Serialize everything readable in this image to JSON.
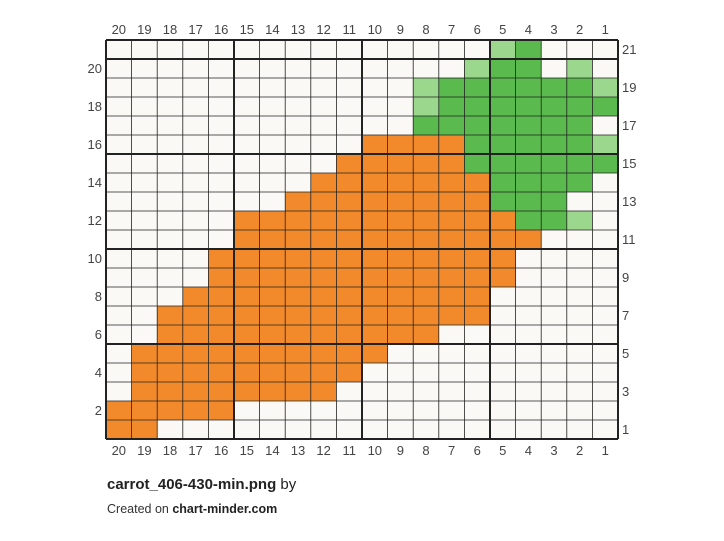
{
  "footer": {
    "filename": "carrot_406-430-min.png",
    "by_word": "by",
    "created_on": "Created on",
    "site": "chart-minder.com"
  },
  "chart_data": {
    "type": "grid",
    "columns": 20,
    "rows": 21,
    "column_labels": [
      "20",
      "19",
      "18",
      "17",
      "16",
      "15",
      "14",
      "13",
      "12",
      "11",
      "10",
      "9",
      "8",
      "7",
      "6",
      "5",
      "4",
      "3",
      "2",
      "1"
    ],
    "left_row_labels": [
      "20",
      "18",
      "16",
      "14",
      "12",
      "10",
      "8",
      "6",
      "4",
      "2"
    ],
    "right_row_labels": [
      "21",
      "19",
      "17",
      "15",
      "13",
      "11",
      "9",
      "7",
      "5",
      "3",
      "1"
    ],
    "colors": {
      "background": "#faf9f5",
      "orange": "#f28a2b",
      "green": "#5aba4e",
      "light_green": "#9bd88e",
      "grid": "#222222"
    },
    "legend": {
      ".": "background",
      "O": "orange",
      "G": "green",
      "L": "light_green"
    },
    "cells": [
      "...............LG...",
      "..............LGG.L.",
      "............LGGGGGGL",
      "............LGGGGGGG",
      "............GGGGGGG.",
      "..........OOOOGGGGGL",
      ".........OOOOOGGGGGG",
      "........OOOOOOOGGGG.",
      ".......OOOOOOOOGGG..",
      ".....OOOOOOOOOOOGGL.",
      ".....OOOOOOOOOOOO...",
      "....OOOOOOOOOOOO....",
      "....OOOOOOOOOOOO....",
      "...OOOOOOOOOOOO.....",
      "..OOOOOOOOOOOOO.....",
      "..OOOOOOOOOOO.......",
      ".OOOOOOOOOO.........",
      ".OOOOOOOOO..........",
      ".OOOOOOOO...........",
      "OOOOO...............",
      "OO.................."
    ]
  }
}
